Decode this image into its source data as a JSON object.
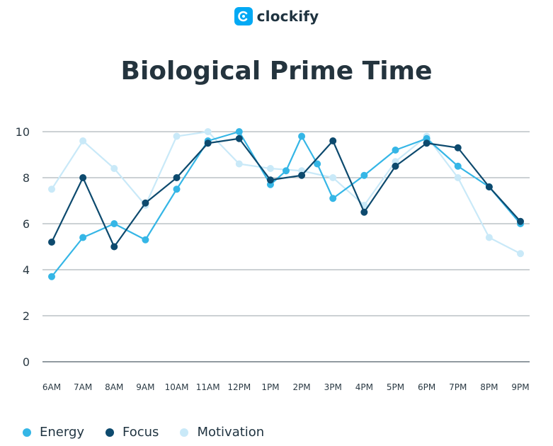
{
  "brand": {
    "name": "clockify",
    "color": "#03a9f4"
  },
  "chart_data": {
    "type": "line",
    "title": "Biological Prime Time",
    "xlabel": "",
    "ylabel": "",
    "categories": [
      "6AM",
      "7AM",
      "8AM",
      "9AM",
      "10AM",
      "11AM",
      "12PM",
      "1PM",
      "2PM",
      "3PM",
      "4PM",
      "5PM",
      "6PM",
      "7PM",
      "8PM",
      "9PM"
    ],
    "ylim": [
      0,
      10
    ],
    "yticks": [
      0,
      2,
      4,
      6,
      8,
      10
    ],
    "grid": true,
    "legend_position": "bottom-left",
    "series": [
      {
        "name": "Motivation",
        "color": "#c9e9f8",
        "x": [
          0,
          1,
          2,
          3,
          4,
          5,
          6,
          7,
          8,
          9,
          10,
          11,
          12,
          13,
          14,
          15
        ],
        "values": [
          7.5,
          9.6,
          8.4,
          6.8,
          9.8,
          10.0,
          8.6,
          8.4,
          8.3,
          8.0,
          6.8,
          8.7,
          9.8,
          8.0,
          5.4,
          4.7
        ]
      },
      {
        "name": "Energy",
        "color": "#35b6e6",
        "x": [
          0,
          1,
          2,
          3,
          4,
          5,
          6,
          7,
          7.5,
          8,
          8.5,
          9,
          10,
          11,
          12,
          13,
          14,
          15
        ],
        "values": [
          3.7,
          5.4,
          6.0,
          5.3,
          7.5,
          9.6,
          10.0,
          7.7,
          8.3,
          9.8,
          8.6,
          7.1,
          8.1,
          9.2,
          9.7,
          8.5,
          7.6,
          6.0
        ]
      },
      {
        "name": "Focus",
        "color": "#0d4a6e",
        "x": [
          0,
          1,
          2,
          3,
          4,
          5,
          6,
          7,
          8,
          9,
          10,
          11,
          12,
          13,
          14,
          15
        ],
        "values": [
          5.2,
          8.0,
          5.0,
          6.9,
          8.0,
          9.5,
          9.7,
          7.9,
          8.1,
          9.6,
          6.5,
          8.5,
          9.5,
          9.3,
          7.6,
          6.1
        ]
      }
    ],
    "legend": [
      {
        "name": "Energy",
        "color": "#35b6e6"
      },
      {
        "name": "Focus",
        "color": "#0d4a6e"
      },
      {
        "name": "Motivation",
        "color": "#c9e9f8"
      }
    ]
  }
}
